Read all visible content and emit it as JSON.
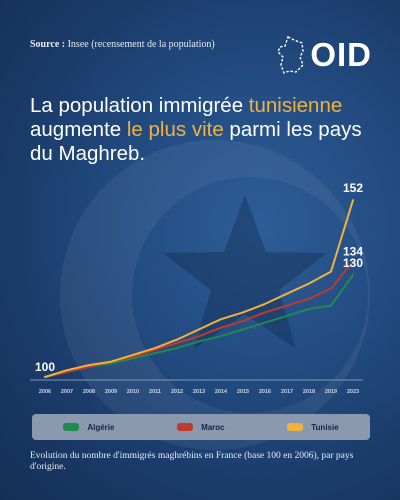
{
  "header": {
    "source_label": "Source :",
    "source_text": "Insee (recensement de la population)",
    "logo_text": "OID"
  },
  "headline": {
    "part1": "La population immigrée ",
    "highlight1": "tunisienne",
    "part2": " augmente ",
    "highlight2": "le plus vite",
    "part3": " parmi les pays du Maghreb."
  },
  "caption": "Evolution du nombre d'immigrés maghrébins en France (base 100 en 2006), par pays d'origine.",
  "colors": {
    "algerie": "#1f8a4c",
    "maroc": "#c0392b",
    "tunisie": "#f2b13d",
    "axis": "#7f96b5",
    "highlight": "#f2b13d"
  },
  "chart_data": {
    "type": "line",
    "title": "",
    "xlabel": "",
    "ylabel": "",
    "categories": [
      "2006",
      "2007",
      "2008",
      "2009",
      "2010",
      "2011",
      "2012",
      "2013",
      "2014",
      "2015",
      "2016",
      "2017",
      "2018",
      "2019",
      "2023"
    ],
    "ylim": [
      100,
      155
    ],
    "grid": false,
    "legend_position": "bottom",
    "series": [
      {
        "name": "Algérie",
        "values": [
          100,
          101.5,
          103,
          104,
          105.5,
          107,
          108.5,
          110.5,
          112,
          114,
          116,
          118,
          120,
          121,
          130
        ],
        "end_label": "130"
      },
      {
        "name": "Maroc",
        "values": [
          100,
          101.5,
          103,
          104.5,
          106,
          108,
          110,
          112,
          114.5,
          116.5,
          119,
          121,
          123,
          126,
          134
        ],
        "end_label": "134"
      },
      {
        "name": "Tunisie",
        "values": [
          100,
          102,
          103.5,
          104.5,
          106.5,
          108.5,
          111,
          114,
          117,
          119,
          121.5,
          124.5,
          127.5,
          131,
          152
        ],
        "end_label": "152"
      }
    ],
    "start_label": "100"
  }
}
